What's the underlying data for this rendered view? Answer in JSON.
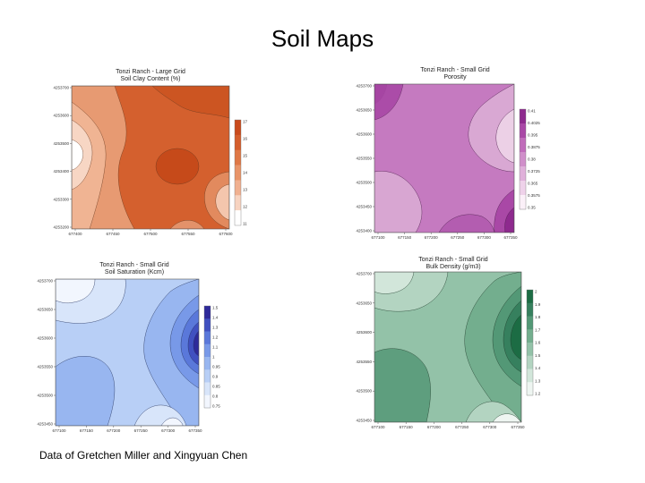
{
  "slide": {
    "title": "Soil Maps",
    "footer": "Data of Gretchen Miller and Xingyuan Chen"
  },
  "chart_data": [
    {
      "type": "heatmap",
      "title": "Tonzi Ranch - Large Grid",
      "subtitle": "Soil Clay Content (%)",
      "palette": [
        "#ffffff",
        "#f7d3c0",
        "#f0b090",
        "#e89468",
        "#df7846",
        "#d45e2c",
        "#c94b1c"
      ],
      "colorbar_ticks": [
        "17",
        "16",
        "15",
        "14",
        "13",
        "12",
        "11"
      ],
      "yticks": [
        "4253700",
        "4253600",
        "4253500",
        "4253400",
        "4253300",
        "4253200"
      ],
      "xticks": [
        "677400",
        "677450",
        "677500",
        "677550",
        "677600"
      ]
    },
    {
      "type": "heatmap",
      "title": "Tonzi Ranch - Small Grid",
      "subtitle": "Porosity",
      "palette": [
        "#fbf0f8",
        "#efd2ea",
        "#e0b0da",
        "#d08fca",
        "#c06cba",
        "#a948a6",
        "#8e2a8e"
      ],
      "colorbar_ticks": [
        "0.41",
        "0.4025",
        "0.395",
        "0.3875",
        "0.38",
        "0.3725",
        "0.365",
        "0.3575",
        "0.35"
      ],
      "yticks": [
        "4253700",
        "4253650",
        "4253600",
        "4253550",
        "4253500",
        "4253450",
        "4253400"
      ],
      "xticks": [
        "677100",
        "677150",
        "677200",
        "677250",
        "677300",
        "677350"
      ]
    },
    {
      "type": "heatmap",
      "title": "Tonzi Ranch - Small Grid",
      "subtitle": "Soil Saturation (Kcm)",
      "palette": [
        "#f2f6fe",
        "#d8e5fa",
        "#b8cff6",
        "#98b6f0",
        "#7899e8",
        "#5a78da",
        "#4050c0",
        "#2e2a9a"
      ],
      "colorbar_ticks": [
        "1.5",
        "1.4",
        "1.3",
        "1.2",
        "1.1",
        "1",
        "0.95",
        "0.9",
        "0.85",
        "0.8",
        "0.75"
      ],
      "yticks": [
        "4253700",
        "4253650",
        "4253600",
        "4253550",
        "4253500",
        "4253450"
      ],
      "xticks": [
        "677100",
        "677150",
        "677200",
        "677250",
        "677300",
        "677350"
      ]
    },
    {
      "type": "heatmap",
      "title": "Tonzi Ranch - Small Grid",
      "subtitle": "Bulk Density (g/m3)",
      "palette": [
        "#eef5f1",
        "#d2e6da",
        "#b3d4c1",
        "#93c2a8",
        "#73ae8e",
        "#539876",
        "#36805e",
        "#1c6c44"
      ],
      "colorbar_ticks": [
        "2",
        "1.9",
        "1.8",
        "1.7",
        "1.6",
        "1.5",
        "1.4",
        "1.3",
        "1.2"
      ],
      "yticks": [
        "4253700",
        "4253650",
        "4253600",
        "4253550",
        "4253500",
        "4253450"
      ],
      "xticks": [
        "677100",
        "677150",
        "677200",
        "677250",
        "677300",
        "677350"
      ]
    }
  ]
}
